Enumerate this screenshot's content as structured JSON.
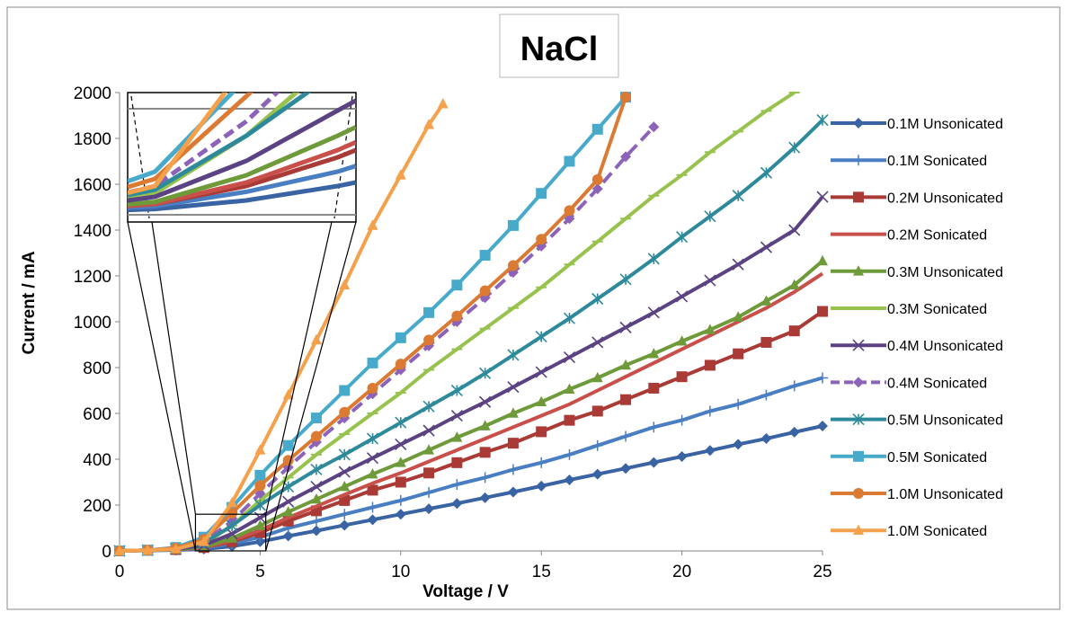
{
  "chart_data": {
    "type": "line",
    "title": "NaCl",
    "xlabel": "Voltage / V",
    "ylabel": "Current / mA",
    "xlim": [
      0,
      25
    ],
    "ylim": [
      0,
      2000
    ],
    "x_ticks": [
      "0",
      "5",
      "10",
      "15",
      "20",
      "25"
    ],
    "y_ticks": [
      "0",
      "200",
      "400",
      "600",
      "800",
      "1000",
      "1200",
      "1400",
      "1600",
      "1800",
      "2000"
    ],
    "grid": false,
    "legend_position": "right",
    "inset": "magnified view of the region near V = 2.7–5.2, I = 0–160",
    "series": [
      {
        "name": "0.1M Unsonicated",
        "color": "#3A63A3",
        "marker": "diamond",
        "dashed": false,
        "x": [
          0,
          1,
          2,
          3,
          4,
          5,
          6,
          7,
          8,
          9,
          10,
          11,
          12,
          13,
          14,
          15,
          16,
          17,
          18,
          19,
          20,
          21,
          22,
          23,
          24,
          25
        ],
        "y": [
          0,
          2,
          4,
          8,
          20,
          40,
          65,
          88,
          112,
          136,
          160,
          184,
          207,
          232,
          257,
          283,
          310,
          335,
          360,
          386,
          412,
          438,
          465,
          490,
          518,
          545
        ]
      },
      {
        "name": "0.1M Sonicated",
        "color": "#4A7EC3",
        "marker": "plus",
        "dashed": false,
        "x": [
          0,
          1,
          2,
          3,
          4,
          5,
          6,
          7,
          8,
          9,
          10,
          11,
          12,
          13,
          14,
          15,
          16,
          17,
          18,
          19,
          20,
          21,
          22,
          23,
          24,
          25
        ],
        "y": [
          0,
          2,
          5,
          12,
          32,
          60,
          100,
          130,
          160,
          190,
          220,
          255,
          290,
          320,
          355,
          385,
          420,
          460,
          500,
          540,
          570,
          610,
          640,
          680,
          720,
          755
        ]
      },
      {
        "name": "0.2M Unsonicated",
        "color": "#A93A36",
        "marker": "square",
        "dashed": false,
        "x": [
          0,
          1,
          2,
          3,
          4,
          5,
          6,
          7,
          8,
          9,
          10,
          11,
          12,
          13,
          14,
          15,
          16,
          17,
          18,
          19,
          20,
          21,
          22,
          23,
          24,
          25
        ],
        "y": [
          0,
          3,
          6,
          15,
          40,
          80,
          130,
          175,
          220,
          265,
          300,
          340,
          385,
          430,
          470,
          520,
          570,
          610,
          660,
          710,
          760,
          810,
          860,
          910,
          960,
          1045
        ]
      },
      {
        "name": "0.2M Sonicated",
        "color": "#C9504A",
        "marker": "none",
        "dashed": false,
        "x": [
          0,
          1,
          2,
          3,
          4,
          5,
          6,
          7,
          8,
          9,
          10,
          11,
          12,
          13,
          14,
          15,
          16,
          17,
          18,
          19,
          20,
          21,
          22,
          23,
          24,
          25
        ],
        "y": [
          0,
          3,
          6,
          15,
          45,
          90,
          145,
          195,
          245,
          295,
          340,
          390,
          440,
          490,
          540,
          590,
          640,
          700,
          760,
          820,
          880,
          940,
          1000,
          1060,
          1130,
          1210
        ]
      },
      {
        "name": "0.3M Unsonicated",
        "color": "#6E9A3A",
        "marker": "triangle",
        "dashed": false,
        "x": [
          0,
          1,
          2,
          3,
          4,
          5,
          6,
          7,
          8,
          9,
          10,
          11,
          12,
          13,
          14,
          15,
          16,
          17,
          18,
          19,
          20,
          21,
          22,
          23,
          24,
          25
        ],
        "y": [
          0,
          3,
          6,
          18,
          55,
          110,
          170,
          225,
          280,
          335,
          385,
          440,
          495,
          545,
          600,
          650,
          705,
          755,
          810,
          860,
          915,
          965,
          1020,
          1090,
          1160,
          1265
        ]
      },
      {
        "name": "0.3M Sonicated",
        "color": "#98C24E",
        "marker": "dash",
        "dashed": false,
        "x": [
          0,
          1,
          2,
          3,
          4,
          5,
          6,
          7,
          8,
          9,
          10,
          11,
          12,
          13,
          14,
          15,
          16,
          17,
          18,
          19,
          20,
          21,
          22,
          23,
          24
        ],
        "y": [
          0,
          3,
          8,
          30,
          110,
          220,
          320,
          420,
          510,
          600,
          690,
          790,
          880,
          970,
          1060,
          1150,
          1250,
          1350,
          1450,
          1550,
          1640,
          1740,
          1830,
          1920,
          2000
        ]
      },
      {
        "name": "0.4M Unsonicated",
        "color": "#5B4282",
        "marker": "cross",
        "dashed": false,
        "x": [
          0,
          1,
          2,
          3,
          4,
          5,
          6,
          7,
          8,
          9,
          10,
          11,
          12,
          13,
          14,
          15,
          16,
          17,
          18,
          19,
          20,
          21,
          22,
          23,
          24,
          25
        ],
        "y": [
          0,
          3,
          8,
          25,
          75,
          145,
          215,
          280,
          345,
          405,
          465,
          525,
          590,
          650,
          715,
          780,
          845,
          910,
          975,
          1040,
          1110,
          1180,
          1250,
          1325,
          1400,
          1545
        ]
      },
      {
        "name": "0.4M Sonicated",
        "color": "#8C63B8",
        "marker": "diamond",
        "dashed": true,
        "x": [
          0,
          1,
          2,
          3,
          4,
          5,
          6,
          7,
          8,
          9,
          10,
          11,
          12,
          13,
          14,
          15,
          16,
          17,
          18,
          19
        ],
        "y": [
          0,
          3,
          10,
          40,
          130,
          250,
          365,
          475,
          580,
          685,
          790,
          895,
          1000,
          1105,
          1215,
          1330,
          1450,
          1580,
          1720,
          1850
        ]
      },
      {
        "name": "0.5M Unsonicated",
        "color": "#2E8A9A",
        "marker": "asterisk",
        "dashed": false,
        "x": [
          0,
          1,
          2,
          3,
          4,
          5,
          6,
          7,
          8,
          9,
          10,
          11,
          12,
          13,
          14,
          15,
          16,
          17,
          18,
          19,
          20,
          21,
          22,
          23,
          24,
          25
        ],
        "y": [
          0,
          3,
          10,
          35,
          110,
          200,
          280,
          355,
          420,
          490,
          560,
          630,
          700,
          775,
          855,
          935,
          1015,
          1100,
          1185,
          1275,
          1370,
          1460,
          1550,
          1650,
          1760,
          1880
        ]
      },
      {
        "name": "0.5M Sonicated",
        "color": "#47AACB",
        "marker": "square",
        "dashed": false,
        "x": [
          0,
          1,
          2,
          3,
          4,
          5,
          6,
          7,
          8,
          9,
          10,
          11,
          12,
          13,
          14,
          15,
          16,
          17,
          18
        ],
        "y": [
          0,
          3,
          15,
          60,
          190,
          330,
          460,
          580,
          700,
          820,
          930,
          1040,
          1160,
          1290,
          1420,
          1560,
          1700,
          1840,
          1980
        ]
      },
      {
        "name": "1.0M Unsonicated",
        "color": "#DB7A33",
        "marker": "circle",
        "dashed": false,
        "x": [
          0,
          1,
          2,
          3,
          4,
          5,
          6,
          7,
          8,
          9,
          10,
          11,
          12,
          13,
          14,
          15,
          16,
          17,
          18
        ],
        "y": [
          0,
          3,
          12,
          50,
          165,
          285,
          395,
          500,
          605,
          710,
          815,
          920,
          1025,
          1135,
          1245,
          1360,
          1485,
          1620,
          1980
        ]
      },
      {
        "name": "1.0M Sonicated",
        "color": "#F5A04A",
        "marker": "triangle",
        "dashed": false,
        "x": [
          0,
          1,
          2,
          3,
          4,
          5,
          6,
          7,
          8,
          9,
          10,
          11,
          11.5
        ],
        "y": [
          0,
          3,
          8,
          40,
          210,
          440,
          680,
          920,
          1160,
          1420,
          1640,
          1860,
          1950
        ]
      }
    ]
  }
}
